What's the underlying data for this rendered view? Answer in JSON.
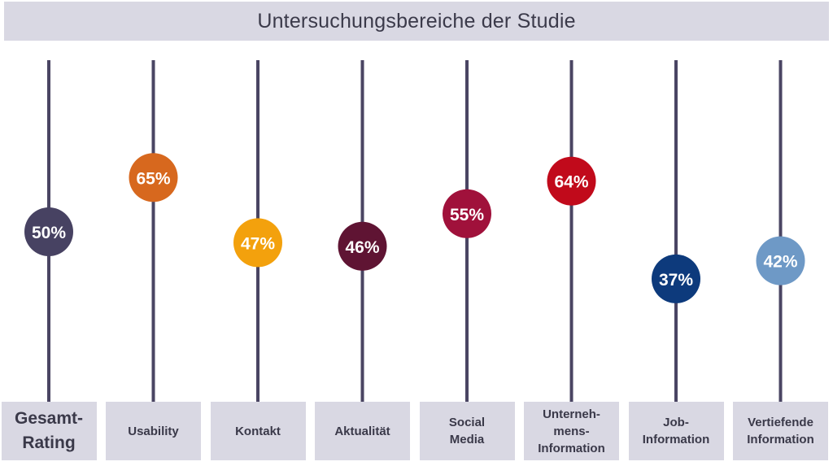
{
  "header": {
    "title": "Untersuchungsbereiche der Studie"
  },
  "chart_data": {
    "type": "scatter",
    "title": "Untersuchungsbereiche der Studie",
    "categories": [
      "Gesamt-\nRating",
      "Usability",
      "Kontakt",
      "Aktualität",
      "Social\nMedia",
      "Unterneh-\nmens-\nInformation",
      "Job-\nInformation",
      "Vertiefende\nInformation"
    ],
    "values": [
      50,
      65,
      47,
      46,
      55,
      64,
      37,
      42
    ],
    "value_labels": [
      "50%",
      "65%",
      "47%",
      "46%",
      "55%",
      "64%",
      "37%",
      "42%"
    ],
    "colors": [
      "#474262",
      "#d7681e",
      "#f3a10d",
      "#5f1433",
      "#a0113b",
      "#c10a1b",
      "#0d3a7c",
      "#6e99c6"
    ],
    "line_color": "#4a4563",
    "unit": "%"
  }
}
